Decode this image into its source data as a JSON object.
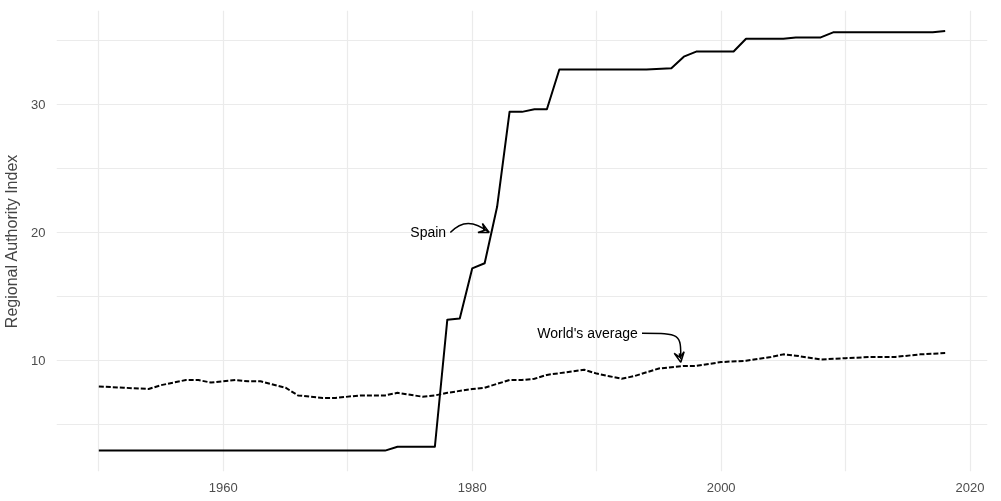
{
  "chart_data": {
    "type": "line",
    "ylabel": "Regional Authority Index",
    "xlim": [
      1946.6,
      2021.4
    ],
    "ylim": [
      1.37,
      37.3
    ],
    "xticks": [
      {
        "value": 1950,
        "label": null
      },
      1960,
      {
        "value": 1970,
        "label": null
      },
      1980,
      {
        "value": 1990,
        "label": null
      },
      2000,
      {
        "value": 2010,
        "label": null
      },
      2020
    ],
    "yticks": [
      {
        "value": 5,
        "label": null
      },
      10,
      {
        "value": 15,
        "label": null
      },
      20,
      {
        "value": 25,
        "label": null
      },
      30,
      {
        "value": 35,
        "label": null
      }
    ],
    "grid": true,
    "marker": "none",
    "series": [
      {
        "color": "#000000",
        "line_style": "solid",
        "x": [
          1950,
          1973,
          1974,
          1977,
          1978,
          1979,
          1980,
          1981,
          1982,
          1983,
          1984,
          1985,
          1986,
          1987,
          1994,
          1996,
          1997,
          1998,
          2001,
          2002,
          2005,
          2006,
          2008,
          2009,
          2017,
          2018
        ],
        "values": [
          3.0,
          3.0,
          3.3,
          3.3,
          13.2,
          13.3,
          17.2,
          17.6,
          22.0,
          29.4,
          29.4,
          29.6,
          29.6,
          32.7,
          32.7,
          32.8,
          33.7,
          34.1,
          34.1,
          35.1,
          35.1,
          35.2,
          35.2,
          35.6,
          35.6,
          35.7
        ]
      },
      {
        "color": "#000000",
        "line_style": "dashed",
        "x": [
          1950,
          1952,
          1954,
          1955,
          1957,
          1958,
          1959,
          1961,
          1962,
          1963,
          1965,
          1966,
          1968,
          1969,
          1971,
          1973,
          1974,
          1976,
          1977,
          1978,
          1980,
          1981,
          1983,
          1984,
          1985,
          1986,
          1989,
          1990,
          1991,
          1992,
          1993,
          1995,
          1997,
          1998,
          2000,
          2002,
          2004,
          2005,
          2006,
          2008,
          2010,
          2012,
          2014,
          2016,
          2018
        ],
        "values": [
          8.0,
          7.9,
          7.8,
          8.1,
          8.5,
          8.5,
          8.3,
          8.5,
          8.4,
          8.4,
          7.9,
          7.3,
          7.1,
          7.1,
          7.3,
          7.3,
          7.5,
          7.2,
          7.3,
          7.5,
          7.8,
          7.9,
          8.5,
          8.5,
          8.6,
          8.9,
          9.3,
          9.0,
          8.8,
          8.6,
          8.8,
          9.4,
          9.6,
          9.6,
          9.9,
          10.0,
          10.3,
          10.5,
          10.4,
          10.1,
          10.2,
          10.3,
          10.3,
          10.5,
          10.6
        ]
      }
    ],
    "annotations": [
      {
        "text": "Spain",
        "x": 1981.6,
        "y": 20
      },
      {
        "text": "World's average",
        "x": 1997,
        "y": 9.8
      }
    ]
  }
}
